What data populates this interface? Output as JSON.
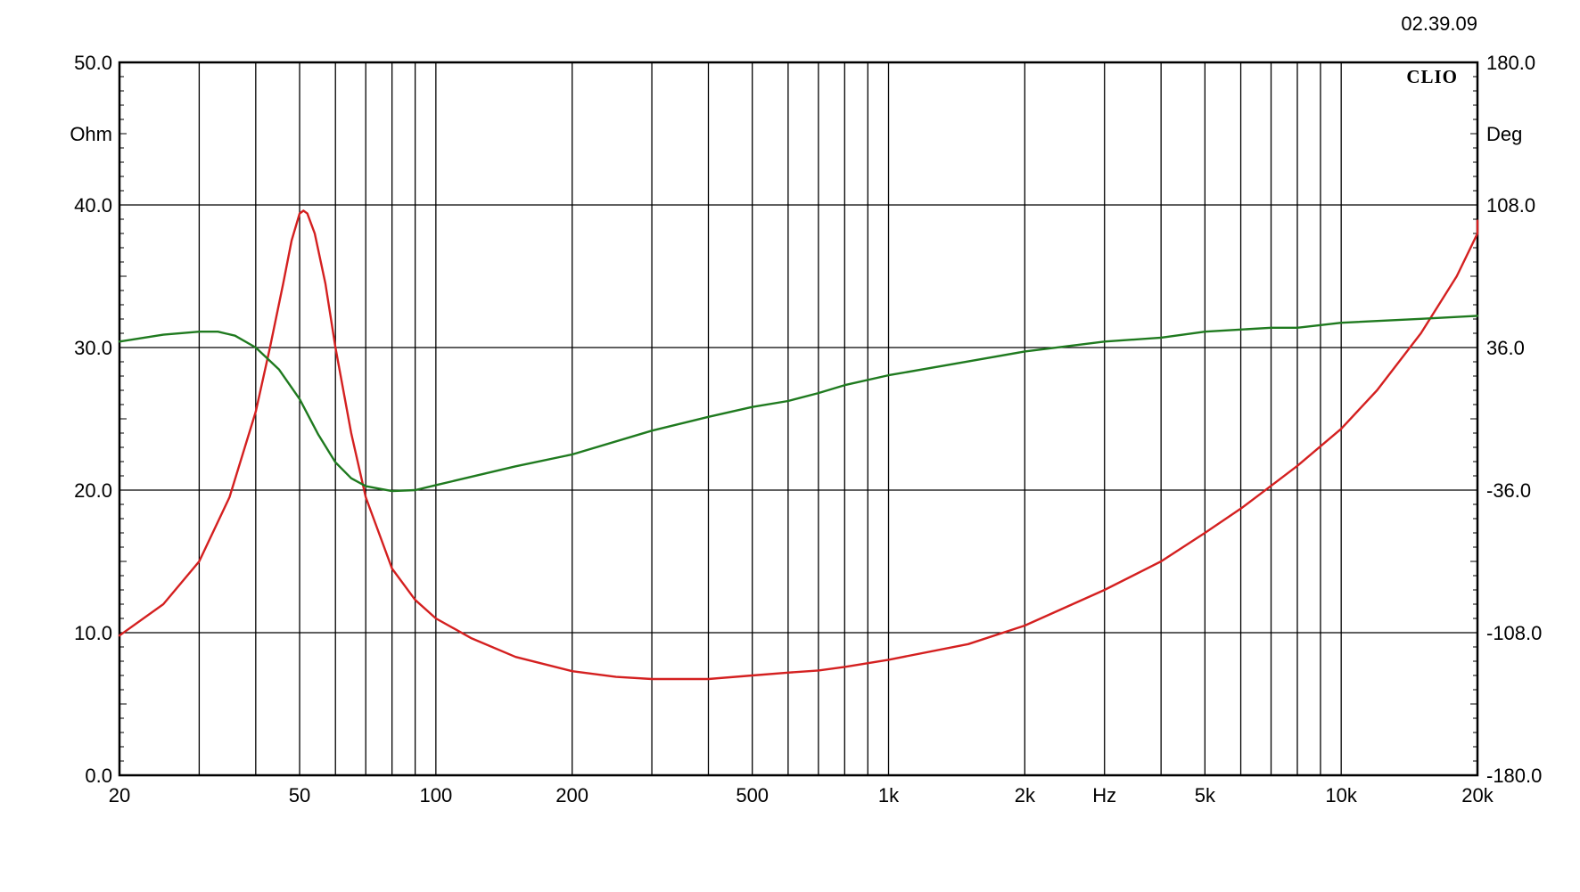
{
  "timestamp": "02.39.09",
  "brand": "CLIO",
  "chart_data": {
    "type": "line",
    "x_scale": "log",
    "xlim": [
      20,
      20000
    ],
    "x_ticks": [
      {
        "value": 20,
        "label": "20"
      },
      {
        "value": 50,
        "label": "50"
      },
      {
        "value": 100,
        "label": "100"
      },
      {
        "value": 200,
        "label": "200"
      },
      {
        "value": 500,
        "label": "500"
      },
      {
        "value": 1000,
        "label": "1k"
      },
      {
        "value": 2000,
        "label": "2k"
      },
      {
        "value": 5000,
        "label": "5k"
      },
      {
        "value": 10000,
        "label": "10k"
      },
      {
        "value": 20000,
        "label": "20k"
      }
    ],
    "x_unit_label": "Hz",
    "x_unit_position": 3000,
    "y_left": {
      "unit": "Ohm",
      "lim": [
        0,
        50
      ],
      "ticks": [
        {
          "value": 0,
          "label": "0.0"
        },
        {
          "value": 10,
          "label": "10.0"
        },
        {
          "value": 20,
          "label": "20.0"
        },
        {
          "value": 30,
          "label": "30.0"
        },
        {
          "value": 40,
          "label": "40.0"
        },
        {
          "value": 50,
          "label": "50.0"
        }
      ]
    },
    "y_right": {
      "unit": "Deg",
      "lim": [
        -180,
        180
      ],
      "ticks": [
        {
          "value": -180,
          "label": "-180.0"
        },
        {
          "value": -108,
          "label": "-108.0"
        },
        {
          "value": -36,
          "label": "-36.0"
        },
        {
          "value": 36,
          "label": "36.0"
        },
        {
          "value": 108,
          "label": "108.0"
        },
        {
          "value": 180,
          "label": "180.0"
        }
      ]
    },
    "grid": true,
    "series": [
      {
        "axis": "left",
        "color": "#d42020",
        "points": [
          [
            20,
            9.8
          ],
          [
            25,
            12.0
          ],
          [
            30,
            15.0
          ],
          [
            35,
            19.5
          ],
          [
            40,
            25.5
          ],
          [
            43,
            30.0
          ],
          [
            46,
            34.5
          ],
          [
            48,
            37.5
          ],
          [
            50,
            39.4
          ],
          [
            51,
            39.6
          ],
          [
            52,
            39.4
          ],
          [
            54,
            38.0
          ],
          [
            57,
            34.5
          ],
          [
            60,
            30.0
          ],
          [
            65,
            24.0
          ],
          [
            70,
            19.5
          ],
          [
            80,
            14.5
          ],
          [
            90,
            12.3
          ],
          [
            100,
            11.0
          ],
          [
            120,
            9.6
          ],
          [
            150,
            8.3
          ],
          [
            200,
            7.3
          ],
          [
            250,
            6.9
          ],
          [
            300,
            6.75
          ],
          [
            400,
            6.75
          ],
          [
            500,
            7.0
          ],
          [
            600,
            7.2
          ],
          [
            700,
            7.35
          ],
          [
            800,
            7.6
          ],
          [
            1000,
            8.1
          ],
          [
            1500,
            9.2
          ],
          [
            2000,
            10.5
          ],
          [
            3000,
            13.0
          ],
          [
            4000,
            15.0
          ],
          [
            5000,
            17.0
          ],
          [
            6000,
            18.7
          ],
          [
            7000,
            20.3
          ],
          [
            8000,
            21.7
          ],
          [
            10000,
            24.3
          ],
          [
            12000,
            27.0
          ],
          [
            15000,
            31.0
          ],
          [
            18000,
            35.0
          ],
          [
            20000,
            38.0
          ],
          [
            21000,
            38.9
          ]
        ]
      },
      {
        "axis": "right",
        "color": "#1f7a1f",
        "points": [
          [
            20,
            39
          ],
          [
            25,
            42.5
          ],
          [
            30,
            44
          ],
          [
            33,
            44
          ],
          [
            36,
            42
          ],
          [
            40,
            36
          ],
          [
            45,
            25
          ],
          [
            50,
            10
          ],
          [
            55,
            -8
          ],
          [
            60,
            -22
          ],
          [
            65,
            -30
          ],
          [
            70,
            -34
          ],
          [
            80,
            -36.5
          ],
          [
            90,
            -36
          ],
          [
            100,
            -33.5
          ],
          [
            150,
            -24
          ],
          [
            200,
            -18
          ],
          [
            300,
            -6
          ],
          [
            400,
            1
          ],
          [
            500,
            6
          ],
          [
            600,
            9
          ],
          [
            700,
            13
          ],
          [
            800,
            17
          ],
          [
            1000,
            22
          ],
          [
            1500,
            29
          ],
          [
            2000,
            34
          ],
          [
            3000,
            39
          ],
          [
            4000,
            41
          ],
          [
            5000,
            44
          ],
          [
            7000,
            46
          ],
          [
            8000,
            46
          ],
          [
            10000,
            48.5
          ],
          [
            15000,
            50.5
          ],
          [
            21000,
            52
          ]
        ]
      }
    ]
  }
}
